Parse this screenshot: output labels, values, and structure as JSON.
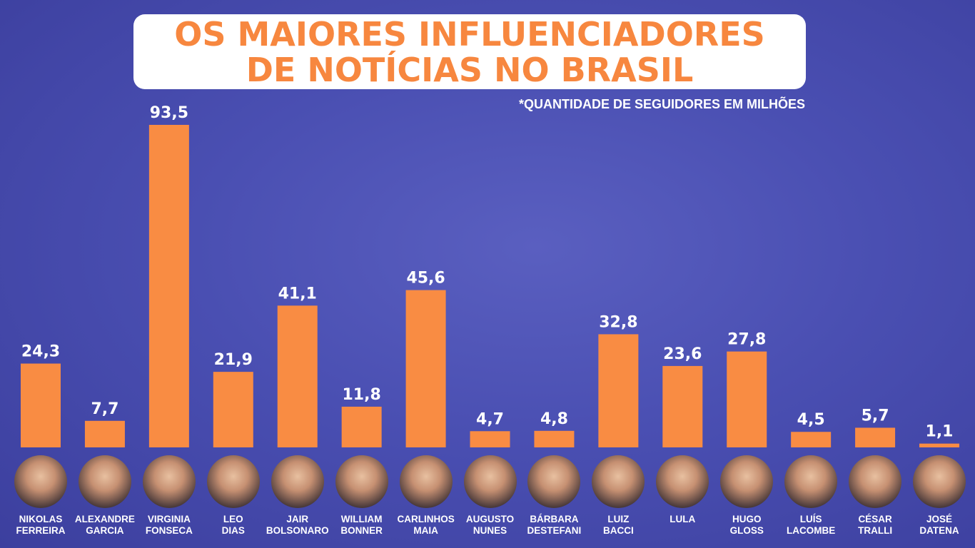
{
  "title": {
    "line1": "OS MAIORES INFLUENCIADORES",
    "line2": "DE NOTÍCIAS NO BRASIL"
  },
  "subtitle": "*QUANTIDADE DE SEGUIDORES EM MILHÕES",
  "colors": {
    "bar": "#f98c43",
    "background": "#4a4fb2",
    "title_text": "#f7873f"
  },
  "chart_data": {
    "type": "bar",
    "title": "OS MAIORES INFLUENCIADORES DE NOTÍCIAS NO BRASIL",
    "subtitle": "*QUANTIDADE DE SEGUIDORES EM MILHÕES",
    "categories": [
      [
        "NIKOLAS",
        "FERREIRA"
      ],
      [
        "ALEXANDRE",
        "GARCIA"
      ],
      [
        "VIRGINIA",
        "FONSECA"
      ],
      [
        "LEO",
        "DIAS"
      ],
      [
        "JAIR",
        "BOLSONARO"
      ],
      [
        "WILLIAM",
        "BONNER"
      ],
      [
        "CARLINHOS",
        "MAIA"
      ],
      [
        "AUGUSTO",
        "NUNES"
      ],
      [
        "BÁRBARA",
        "DESTEFANI"
      ],
      [
        "LUIZ",
        "BACCI"
      ],
      [
        "LULA",
        ""
      ],
      [
        "HUGO",
        "GLOSS"
      ],
      [
        "LUÍS",
        "LACOMBE"
      ],
      [
        "CÉSAR",
        "TRALLI"
      ],
      [
        "JOSÉ",
        "DATENA"
      ]
    ],
    "values": [
      24.3,
      7.7,
      93.5,
      21.9,
      41.1,
      11.8,
      45.6,
      4.7,
      4.8,
      32.8,
      23.6,
      27.8,
      4.5,
      5.7,
      1.1
    ],
    "value_labels": [
      "24,3",
      "7,7",
      "93,5",
      "21,9",
      "41,1",
      "11,8",
      "45,6",
      "4,7",
      "4,8",
      "32,8",
      "23,6",
      "27,8",
      "4,5",
      "5,7",
      "1,1"
    ],
    "ylim": [
      0,
      93.5
    ],
    "grid": false
  }
}
